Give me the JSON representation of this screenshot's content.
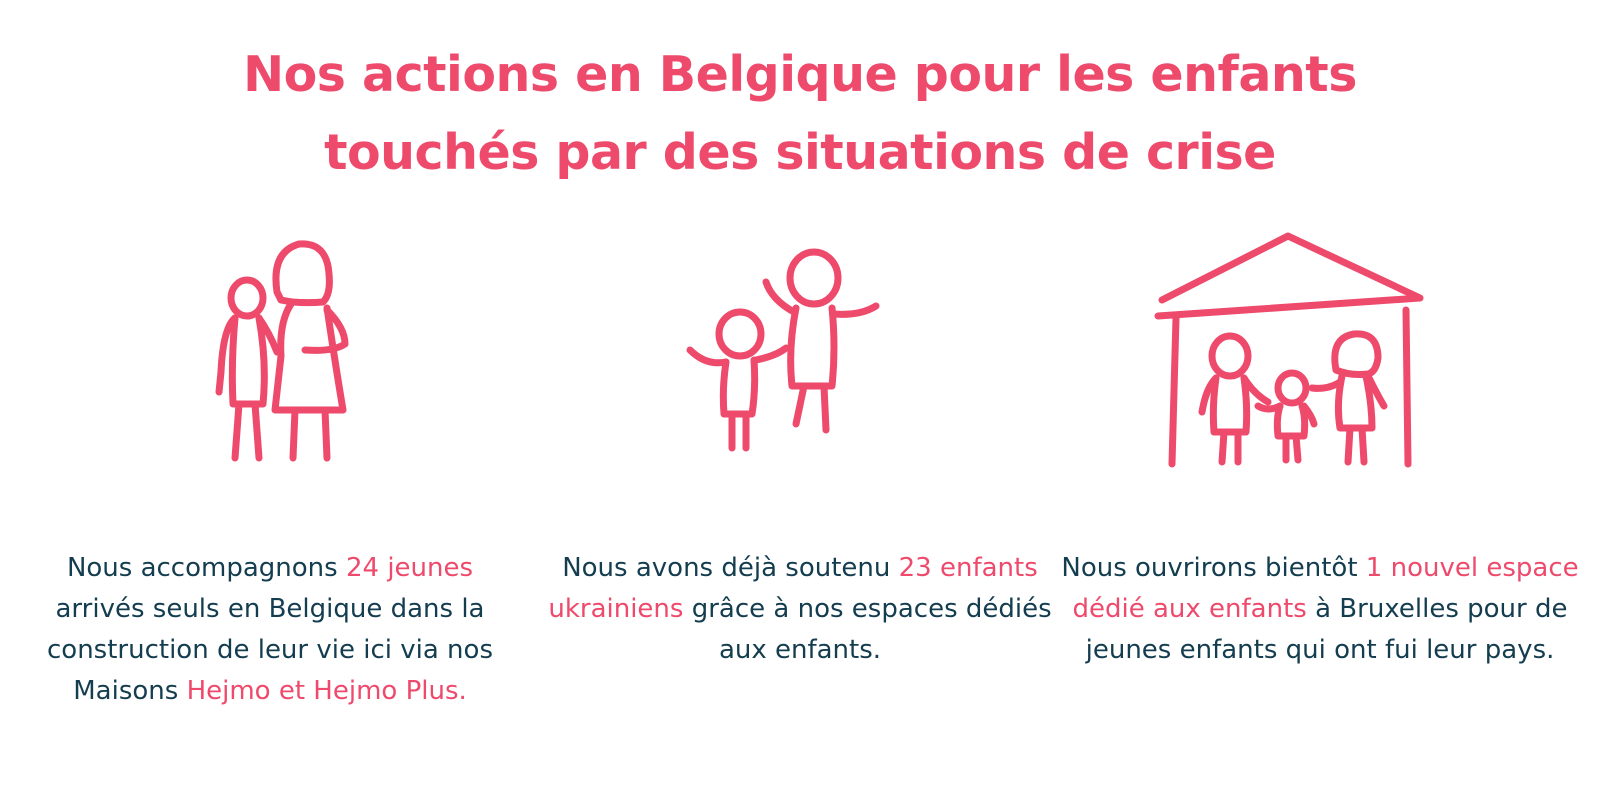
{
  "title": {
    "line1": "Nos actions en Belgique pour les enfants",
    "line2": "touchés par des situations de crise"
  },
  "colors": {
    "accent": "#ee4a6c",
    "text": "#143d4f",
    "background": "#ffffff"
  },
  "illustrations": [
    {
      "icon": "adult-and-child-icon"
    },
    {
      "icon": "two-children-jumping-icon"
    },
    {
      "icon": "family-in-house-icon"
    }
  ],
  "columns": [
    {
      "segments": [
        {
          "text": "Nous accompagnons ",
          "highlight": false
        },
        {
          "text": "24",
          "highlight": true
        },
        {
          "text": " ",
          "highlight": false
        },
        {
          "text": "jeunes",
          "highlight": true
        },
        {
          "text": " arrivés seuls en Belgique dans la construction de leur vie ici via nos Maisons ",
          "highlight": false
        },
        {
          "text": "Hejmo et Hejmo Plus.",
          "highlight": true
        }
      ]
    },
    {
      "segments": [
        {
          "text": "Nous avons déjà soutenu ",
          "highlight": false
        },
        {
          "text": "23 enfants ukrainiens",
          "highlight": true
        },
        {
          "text": " grâce à nos espaces dédiés aux enfants.",
          "highlight": false
        }
      ]
    },
    {
      "segments": [
        {
          "text": "Nous ouvrirons bientôt ",
          "highlight": false
        },
        {
          "text": "1 nouvel espace dédié aux enfants",
          "highlight": true
        },
        {
          "text": " à Bruxelles pour de jeunes enfants qui ont fui leur pays.",
          "highlight": false
        }
      ]
    }
  ]
}
